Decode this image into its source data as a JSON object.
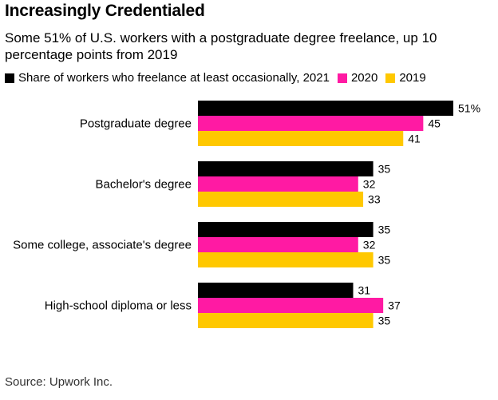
{
  "title": "Increasingly Credentialed",
  "subtitle": "Some 51% of U.S. workers with a postgraduate degree freelance, up 10 percentage points from 2019",
  "source": "Source: Upwork Inc.",
  "colors": {
    "2021": "#000000",
    "2020": "#ff1aa3",
    "2019": "#ffc800"
  },
  "chart_data": {
    "type": "bar",
    "orientation": "horizontal",
    "title": "Increasingly Credentialed",
    "subtitle": "Some 51% of U.S. workers with a postgraduate degree freelance, up 10 percentage points from 2019",
    "categories": [
      "Postgraduate degree",
      "Bachelor's degree",
      "Some college, associate's degree",
      "High-school diploma or less"
    ],
    "series": [
      {
        "name": "Share of workers who freelance at least occasionally, 2021",
        "values": [
          51,
          35,
          35,
          31
        ],
        "color": "#000000"
      },
      {
        "name": "2020",
        "values": [
          45,
          32,
          32,
          37
        ],
        "color": "#ff1aa3"
      },
      {
        "name": "2019",
        "values": [
          41,
          33,
          35,
          35
        ],
        "color": "#ffc800"
      }
    ],
    "value_labels": [
      [
        "51%",
        "35",
        "35",
        "31"
      ],
      [
        "45",
        "32",
        "32",
        "37"
      ],
      [
        "41",
        "33",
        "35",
        "35"
      ]
    ],
    "xlim": [
      0,
      51
    ],
    "grid": false,
    "legend_position": "top-left",
    "source": "Source: Upwork Inc."
  }
}
